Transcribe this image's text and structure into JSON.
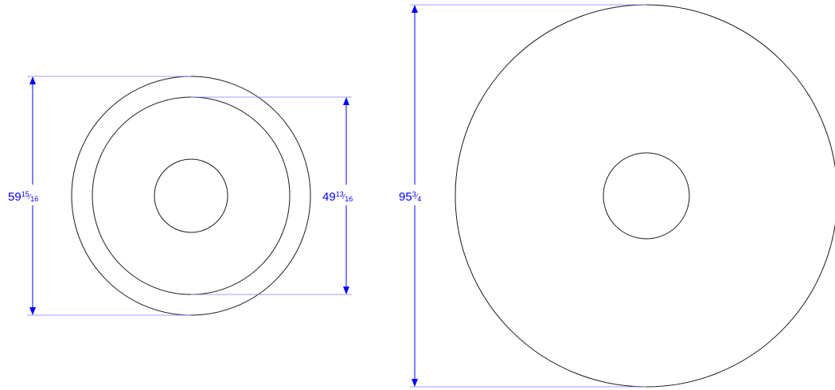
{
  "drawing": {
    "line_color": "#1a1a1a",
    "dimension_color": "#0000ff",
    "extension_color": "#7f7fff",
    "background": "#ffffff"
  },
  "dimensions": {
    "left_outer": {
      "whole": "59",
      "numerator": "15",
      "slash": "⁄",
      "denominator": "16"
    },
    "left_inner": {
      "whole": "49",
      "numerator": "13",
      "slash": "⁄",
      "denominator": "16"
    },
    "right_outer": {
      "whole": "95",
      "numerator": "3",
      "slash": "⁄",
      "denominator": "4"
    }
  }
}
